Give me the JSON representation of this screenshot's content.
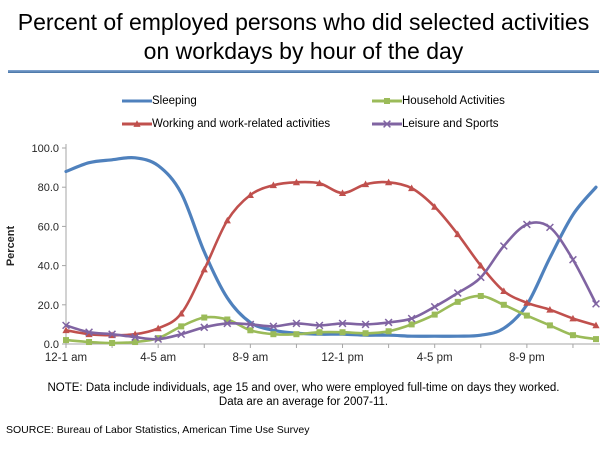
{
  "title": "Percent of employed persons who did selected activities on workdays by hour of the day",
  "accent_color": "#4f81bd",
  "chart_data": {
    "type": "line",
    "title": "Percent of employed persons who did selected activities on workdays by hour of the day",
    "xlabel": "",
    "ylabel": "Percent",
    "ylim": [
      0,
      100
    ],
    "y_ticks": [
      0,
      20,
      40,
      60,
      80,
      100
    ],
    "y_tick_labels": [
      "0.0",
      "20.0",
      "40.0",
      "60.0",
      "80.0",
      "100.0"
    ],
    "x_tick_labels": [
      "12-1 am",
      "4-5 am",
      "8-9 am",
      "12-1 pm",
      "4-5 pm",
      "8-9 pm"
    ],
    "grid": false,
    "legend_position": "top",
    "legend_order": [
      0,
      2,
      1,
      3
    ],
    "categories": [
      "12-1 am",
      "1-2 am",
      "2-3 am",
      "3-4 am",
      "4-5 am",
      "5-6 am",
      "6-7 am",
      "7-8 am",
      "8-9 am",
      "9-10 am",
      "10-11 am",
      "11-12 am",
      "12-1 pm",
      "1-2 pm",
      "2-3 pm",
      "3-4 pm",
      "4-5 pm",
      "5-6 pm",
      "6-7 pm",
      "7-8 pm",
      "8-9 pm",
      "9-10 pm",
      "10-11 pm",
      "11-12 pm"
    ],
    "series": [
      {
        "name": "Sleeping",
        "color": "#4f81bd",
        "marker": "none",
        "values": [
          88,
          92.5,
          94,
          95,
          91,
          77,
          47,
          23.5,
          11,
          7,
          5.5,
          5,
          5,
          4.5,
          4.5,
          4,
          4,
          4,
          4.5,
          8,
          20,
          44,
          66,
          80
        ]
      },
      {
        "name": "Working and work-related activities",
        "color": "#c0504d",
        "marker": "triangle",
        "values": [
          7,
          5,
          4.5,
          5,
          8,
          15.5,
          38,
          63,
          76,
          81,
          82.5,
          82,
          77,
          81.5,
          82.5,
          79.5,
          70,
          56,
          40,
          27,
          21,
          17.5,
          13,
          9.5
        ]
      },
      {
        "name": "Household Activities",
        "color": "#9bbb59",
        "marker": "square",
        "values": [
          2,
          1,
          0.5,
          1,
          3,
          9,
          13.5,
          12.5,
          7,
          5,
          5,
          6,
          6,
          5.5,
          6.5,
          10,
          15,
          21.5,
          24.5,
          20,
          14.5,
          9.5,
          4.5,
          2.5
        ]
      },
      {
        "name": "Leisure and Sports",
        "color": "#8064a2",
        "marker": "x",
        "values": [
          9.5,
          6,
          5,
          3.5,
          2.5,
          5,
          8.5,
          10.5,
          10,
          9,
          10.5,
          9.5,
          10.5,
          10,
          11,
          13,
          19,
          26,
          34,
          50,
          61,
          59.5,
          43,
          20.5
        ]
      }
    ]
  },
  "note": {
    "line1": "NOTE: Data include individuals, age 15 and over, who were employed full-time on days they worked.",
    "line2": "Data are an average for 2007-11."
  },
  "source": "SOURCE: Bureau of Labor Statistics, American Time Use Survey"
}
